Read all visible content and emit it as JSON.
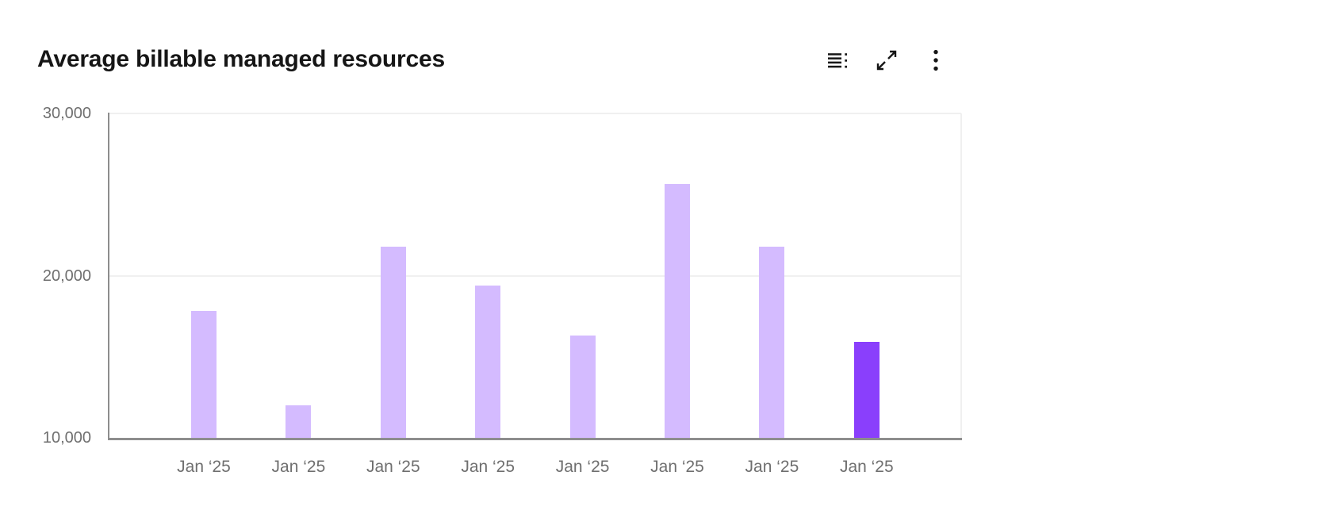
{
  "header": {
    "title": "Average billable managed resources",
    "toolbar": {
      "buttons": [
        {
          "icon": "data-table-icon"
        },
        {
          "icon": "maximize-icon"
        },
        {
          "icon": "overflow-menu-icon"
        }
      ]
    }
  },
  "chart_data": {
    "type": "bar",
    "title": "Average billable managed resources",
    "categories": [
      "Jan ‘25",
      "Jan ‘25",
      "Jan ‘25",
      "Jan ‘25",
      "Jan ‘25",
      "Jan ‘25",
      "Jan ‘25",
      "Jan ‘25"
    ],
    "values": [
      17800,
      12000,
      21800,
      19400,
      16300,
      25650,
      21800,
      15900
    ],
    "highlight_index": 7,
    "xlabel": "",
    "ylabel": "",
    "ylim": [
      10000,
      30000
    ],
    "yticks": [
      {
        "value": 10000,
        "label": "10,000"
      },
      {
        "value": 20000,
        "label": "20,000"
      },
      {
        "value": 30000,
        "label": "30,000"
      }
    ],
    "grid": "horizontal-major",
    "legend": "none",
    "colors": {
      "bar_default": "#d4bbff",
      "bar_highlight": "#8a3ffc",
      "gridline": "#f0f0f0",
      "axis_line": "#8d8d8d",
      "tick_text": "#6f6f6f",
      "title_text": "#161616"
    }
  }
}
